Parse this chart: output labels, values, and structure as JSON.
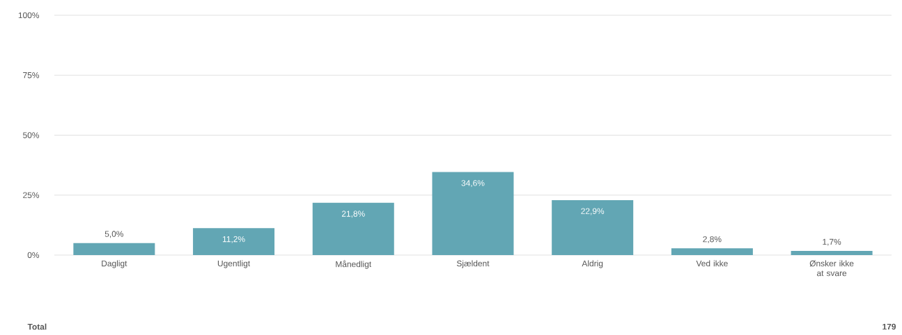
{
  "chart_data": {
    "type": "bar",
    "categories": [
      "Dagligt",
      "Ugentligt",
      "Månedligt",
      "Sjældent",
      "Aldrig",
      "Ved ikke",
      "Ønsker ikke at svare"
    ],
    "values": [
      5.0,
      11.2,
      21.8,
      34.6,
      22.9,
      2.8,
      1.7
    ],
    "value_labels": [
      "5,0%",
      "11,2%",
      "21,8%",
      "34,6%",
      "22,9%",
      "2,8%",
      "1,7%"
    ],
    "color": "#62a6b4",
    "ylim": [
      0,
      100
    ],
    "yticks": [
      {
        "value": 0,
        "label": "0%"
      },
      {
        "value": 25,
        "label": "25%"
      },
      {
        "value": 50,
        "label": "50%"
      },
      {
        "value": 75,
        "label": "75%"
      },
      {
        "value": 100,
        "label": "100%"
      }
    ],
    "grid": "y",
    "annotations": [
      "Total",
      "179"
    ]
  }
}
